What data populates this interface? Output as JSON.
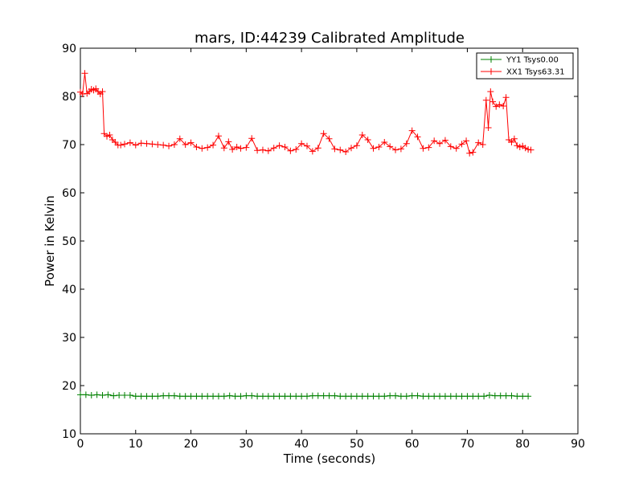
{
  "chart_data": {
    "type": "line",
    "title": "mars, ID:44239 Calibrated Amplitude",
    "xlabel": "Time (seconds)",
    "ylabel": "Power in Kelvin",
    "xlim": [
      0,
      90
    ],
    "ylim": [
      10,
      90
    ],
    "xticks": [
      "0",
      "10",
      "20",
      "30",
      "40",
      "50",
      "60",
      "70",
      "80",
      "90"
    ],
    "yticks": [
      "10",
      "20",
      "30",
      "40",
      "50",
      "60",
      "70",
      "80",
      "90"
    ],
    "grid": false,
    "legend_position": "top-right",
    "marker": "plus",
    "series": [
      {
        "name": "YY1 Tsys0.00",
        "color": "#008000",
        "points": [
          [
            0,
            18.1
          ],
          [
            1,
            18.1
          ],
          [
            2,
            18.0
          ],
          [
            3,
            18.1
          ],
          [
            4,
            18.0
          ],
          [
            5,
            18.1
          ],
          [
            6,
            17.9
          ],
          [
            7,
            18.0
          ],
          [
            8,
            18.0
          ],
          [
            9,
            18.0
          ],
          [
            10,
            17.8
          ],
          [
            11,
            17.8
          ],
          [
            12,
            17.8
          ],
          [
            13,
            17.8
          ],
          [
            14,
            17.8
          ],
          [
            15,
            17.9
          ],
          [
            16,
            17.9
          ],
          [
            17,
            17.9
          ],
          [
            18,
            17.8
          ],
          [
            19,
            17.8
          ],
          [
            20,
            17.8
          ],
          [
            21,
            17.8
          ],
          [
            22,
            17.8
          ],
          [
            23,
            17.8
          ],
          [
            24,
            17.8
          ],
          [
            25,
            17.8
          ],
          [
            26,
            17.8
          ],
          [
            27,
            17.9
          ],
          [
            28,
            17.8
          ],
          [
            29,
            17.8
          ],
          [
            30,
            17.9
          ],
          [
            31,
            17.9
          ],
          [
            32,
            17.8
          ],
          [
            33,
            17.8
          ],
          [
            34,
            17.8
          ],
          [
            35,
            17.8
          ],
          [
            36,
            17.8
          ],
          [
            37,
            17.8
          ],
          [
            38,
            17.8
          ],
          [
            39,
            17.8
          ],
          [
            40,
            17.8
          ],
          [
            41,
            17.8
          ],
          [
            42,
            17.9
          ],
          [
            43,
            17.9
          ],
          [
            44,
            17.9
          ],
          [
            45,
            17.9
          ],
          [
            46,
            17.9
          ],
          [
            47,
            17.8
          ],
          [
            48,
            17.8
          ],
          [
            49,
            17.8
          ],
          [
            50,
            17.8
          ],
          [
            51,
            17.8
          ],
          [
            52,
            17.8
          ],
          [
            53,
            17.8
          ],
          [
            54,
            17.8
          ],
          [
            55,
            17.8
          ],
          [
            56,
            17.9
          ],
          [
            57,
            17.9
          ],
          [
            58,
            17.8
          ],
          [
            59,
            17.8
          ],
          [
            60,
            17.9
          ],
          [
            61,
            17.9
          ],
          [
            62,
            17.8
          ],
          [
            63,
            17.8
          ],
          [
            64,
            17.8
          ],
          [
            65,
            17.8
          ],
          [
            66,
            17.8
          ],
          [
            67,
            17.8
          ],
          [
            68,
            17.8
          ],
          [
            69,
            17.8
          ],
          [
            70,
            17.8
          ],
          [
            71,
            17.8
          ],
          [
            72,
            17.8
          ],
          [
            73,
            17.8
          ],
          [
            74,
            18.0
          ],
          [
            75,
            17.9
          ],
          [
            76,
            17.9
          ],
          [
            77,
            17.9
          ],
          [
            78,
            17.9
          ],
          [
            79,
            17.8
          ],
          [
            80,
            17.8
          ],
          [
            81,
            17.8
          ]
        ]
      },
      {
        "name": "XX1 Tsys63.31",
        "color": "#ff0000",
        "points": [
          [
            0,
            80.9
          ],
          [
            0.4,
            80.5
          ],
          [
            0.8,
            84.8
          ],
          [
            1.2,
            80.6
          ],
          [
            1.6,
            81.0
          ],
          [
            2.0,
            81.5
          ],
          [
            2.4,
            81.3
          ],
          [
            2.8,
            81.6
          ],
          [
            3.2,
            81.0
          ],
          [
            3.6,
            80.5
          ],
          [
            4.0,
            81.0
          ],
          [
            4.3,
            72.3
          ],
          [
            4.8,
            71.7
          ],
          [
            5.3,
            72.0
          ],
          [
            5.8,
            71.0
          ],
          [
            6.3,
            70.5
          ],
          [
            6.8,
            69.9
          ],
          [
            7.3,
            69.9
          ],
          [
            8,
            70.1
          ],
          [
            9,
            70.4
          ],
          [
            10,
            69.9
          ],
          [
            11,
            70.3
          ],
          [
            12,
            70.2
          ],
          [
            13,
            70.1
          ],
          [
            14,
            70.0
          ],
          [
            15,
            69.9
          ],
          [
            16,
            69.7
          ],
          [
            17,
            70.0
          ],
          [
            18,
            71.2
          ],
          [
            19,
            70.0
          ],
          [
            20,
            70.4
          ],
          [
            21,
            69.5
          ],
          [
            22,
            69.2
          ],
          [
            23,
            69.4
          ],
          [
            24,
            69.9
          ],
          [
            25,
            71.8
          ],
          [
            26,
            69.3
          ],
          [
            26.8,
            70.6
          ],
          [
            27.5,
            69.0
          ],
          [
            28.3,
            69.5
          ],
          [
            29,
            69.2
          ],
          [
            30,
            69.4
          ],
          [
            31,
            71.3
          ],
          [
            32,
            68.8
          ],
          [
            33,
            68.9
          ],
          [
            34,
            68.7
          ],
          [
            35,
            69.3
          ],
          [
            36,
            69.8
          ],
          [
            37,
            69.5
          ],
          [
            38,
            68.7
          ],
          [
            39,
            69.0
          ],
          [
            40,
            70.2
          ],
          [
            41,
            69.7
          ],
          [
            42,
            68.6
          ],
          [
            43,
            69.3
          ],
          [
            44,
            72.3
          ],
          [
            45,
            71.2
          ],
          [
            46,
            69.1
          ],
          [
            47,
            68.9
          ],
          [
            48,
            68.5
          ],
          [
            49,
            69.3
          ],
          [
            50,
            69.8
          ],
          [
            51,
            72.0
          ],
          [
            52,
            71.0
          ],
          [
            53,
            69.2
          ],
          [
            54,
            69.5
          ],
          [
            55,
            70.5
          ],
          [
            56,
            69.6
          ],
          [
            57,
            68.9
          ],
          [
            58,
            69.1
          ],
          [
            59,
            70.2
          ],
          [
            60,
            72.9
          ],
          [
            61,
            71.6
          ],
          [
            62,
            69.2
          ],
          [
            63,
            69.4
          ],
          [
            64,
            70.8
          ],
          [
            65,
            70.2
          ],
          [
            66,
            70.9
          ],
          [
            67,
            69.6
          ],
          [
            68,
            69.2
          ],
          [
            69,
            70.1
          ],
          [
            69.8,
            70.8
          ],
          [
            70.4,
            68.2
          ],
          [
            71,
            68.4
          ],
          [
            72,
            70.4
          ],
          [
            72.8,
            70.0
          ],
          [
            73.4,
            79.2
          ],
          [
            73.8,
            73.5
          ],
          [
            74.2,
            81.0
          ],
          [
            74.6,
            78.9
          ],
          [
            75.2,
            77.9
          ],
          [
            75.8,
            78.3
          ],
          [
            76.5,
            78.0
          ],
          [
            77,
            79.8
          ],
          [
            77.5,
            71.0
          ],
          [
            78,
            70.5
          ],
          [
            78.5,
            71.2
          ],
          [
            79,
            69.8
          ],
          [
            79.5,
            69.5
          ],
          [
            80,
            69.7
          ],
          [
            80.5,
            69.3
          ],
          [
            81,
            69.0
          ],
          [
            81.5,
            68.9
          ]
        ]
      }
    ]
  }
}
